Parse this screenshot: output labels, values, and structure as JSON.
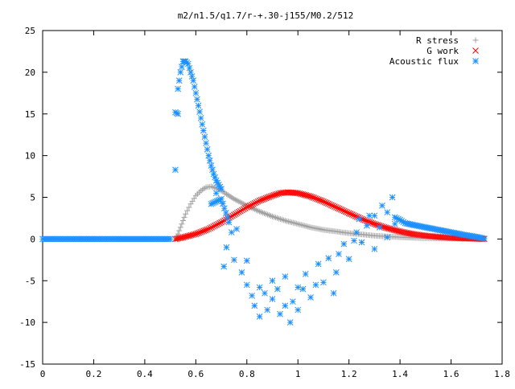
{
  "chart_data": {
    "type": "scatter",
    "title": "m2/n1.5/q1.7/r-+.30-j155/M0.2/512",
    "xlabel": "",
    "ylabel": "",
    "xlim": [
      0,
      1.8
    ],
    "ylim": [
      -15,
      25
    ],
    "xticks": [
      "0",
      "0.2",
      "0.4",
      "0.6",
      "0.8",
      "1",
      "1.2",
      "1.4",
      "1.6",
      "1.8"
    ],
    "yticks": [
      "-15",
      "-10",
      "-5",
      "0",
      "5",
      "10",
      "15",
      "20",
      "25"
    ],
    "grid": false,
    "legend_position": "top-right",
    "series": [
      {
        "name": "R stress",
        "marker": "plus",
        "color": "#a0a0a0",
        "points": [
          [
            0.52,
            0.0
          ],
          [
            0.53,
            0.6
          ],
          [
            0.54,
            1.4
          ],
          [
            0.55,
            2.2
          ],
          [
            0.56,
            3.0
          ],
          [
            0.58,
            4.2
          ],
          [
            0.6,
            5.2
          ],
          [
            0.62,
            5.8
          ],
          [
            0.64,
            6.2
          ],
          [
            0.66,
            6.3
          ],
          [
            0.68,
            6.1
          ],
          [
            0.7,
            5.8
          ],
          [
            0.72,
            5.4
          ],
          [
            0.75,
            4.8
          ],
          [
            0.8,
            4.0
          ],
          [
            0.85,
            3.3
          ],
          [
            0.9,
            2.7
          ],
          [
            0.95,
            2.2
          ],
          [
            1.0,
            1.8
          ],
          [
            1.05,
            1.4
          ],
          [
            1.1,
            1.1
          ],
          [
            1.15,
            0.9
          ],
          [
            1.2,
            0.7
          ],
          [
            1.25,
            0.55
          ],
          [
            1.3,
            0.4
          ],
          [
            1.35,
            0.3
          ],
          [
            1.4,
            0.22
          ],
          [
            1.45,
            0.15
          ],
          [
            1.5,
            0.1
          ],
          [
            1.55,
            0.07
          ],
          [
            1.6,
            0.04
          ],
          [
            1.65,
            0.02
          ],
          [
            1.7,
            0.01
          ],
          [
            1.73,
            0.0
          ]
        ]
      },
      {
        "name": "G work",
        "marker": "cross",
        "color": "#ff0000",
        "points": [
          [
            0.52,
            0.0
          ],
          [
            0.55,
            0.2
          ],
          [
            0.6,
            0.6
          ],
          [
            0.65,
            1.2
          ],
          [
            0.7,
            2.0
          ],
          [
            0.75,
            2.9
          ],
          [
            0.8,
            3.8
          ],
          [
            0.85,
            4.6
          ],
          [
            0.9,
            5.2
          ],
          [
            0.93,
            5.5
          ],
          [
            0.96,
            5.6
          ],
          [
            1.0,
            5.5
          ],
          [
            1.05,
            5.1
          ],
          [
            1.1,
            4.5
          ],
          [
            1.15,
            3.8
          ],
          [
            1.2,
            3.1
          ],
          [
            1.25,
            2.4
          ],
          [
            1.3,
            1.8
          ],
          [
            1.35,
            1.3
          ],
          [
            1.4,
            0.9
          ],
          [
            1.45,
            0.6
          ],
          [
            1.5,
            0.4
          ],
          [
            1.55,
            0.25
          ],
          [
            1.6,
            0.15
          ],
          [
            1.65,
            0.08
          ],
          [
            1.7,
            0.04
          ],
          [
            1.73,
            0.0
          ]
        ]
      },
      {
        "name": "Acoustic flux",
        "marker": "star",
        "color": "#1e90ff",
        "points": [
          [
            0.0,
            0.0
          ],
          [
            0.05,
            0.0
          ],
          [
            0.1,
            0.0
          ],
          [
            0.15,
            0.0
          ],
          [
            0.2,
            0.0
          ],
          [
            0.25,
            0.0
          ],
          [
            0.3,
            0.0
          ],
          [
            0.35,
            0.0
          ],
          [
            0.4,
            0.0
          ],
          [
            0.45,
            0.0
          ],
          [
            0.5,
            0.0
          ],
          [
            0.52,
            8.3
          ],
          [
            0.52,
            15.2
          ],
          [
            0.53,
            15.0
          ],
          [
            0.53,
            18.0
          ],
          [
            0.54,
            20.0
          ],
          [
            0.55,
            21.3
          ],
          [
            0.56,
            21.3
          ],
          [
            0.57,
            21.0
          ],
          [
            0.58,
            20.0
          ],
          [
            0.59,
            19.0
          ],
          [
            0.6,
            17.5
          ],
          [
            0.61,
            16.0
          ],
          [
            0.62,
            14.5
          ],
          [
            0.63,
            13.0
          ],
          [
            0.64,
            11.5
          ],
          [
            0.65,
            10.0
          ],
          [
            0.66,
            8.8
          ],
          [
            0.67,
            7.8
          ],
          [
            0.68,
            7.0
          ],
          [
            0.69,
            6.5
          ],
          [
            0.7,
            6.0
          ],
          [
            0.68,
            5.5
          ],
          [
            0.66,
            4.2
          ],
          [
            0.7,
            4.8
          ],
          [
            0.73,
            2.0
          ],
          [
            0.74,
            0.8
          ],
          [
            0.76,
            1.2
          ],
          [
            0.72,
            -1.0
          ],
          [
            0.71,
            -3.3
          ],
          [
            0.75,
            -2.5
          ],
          [
            0.78,
            -4.0
          ],
          [
            0.8,
            -2.6
          ],
          [
            0.8,
            -5.5
          ],
          [
            0.82,
            -6.8
          ],
          [
            0.83,
            -8.0
          ],
          [
            0.85,
            -5.8
          ],
          [
            0.85,
            -9.3
          ],
          [
            0.87,
            -6.5
          ],
          [
            0.88,
            -8.5
          ],
          [
            0.9,
            -7.2
          ],
          [
            0.9,
            -5.0
          ],
          [
            0.92,
            -6.0
          ],
          [
            0.93,
            -9.0
          ],
          [
            0.95,
            -8.0
          ],
          [
            0.95,
            -4.5
          ],
          [
            0.97,
            -10.0
          ],
          [
            0.98,
            -7.5
          ],
          [
            1.0,
            -5.8
          ],
          [
            1.0,
            -8.5
          ],
          [
            1.02,
            -6.0
          ],
          [
            1.03,
            -4.2
          ],
          [
            1.05,
            -7.0
          ],
          [
            1.07,
            -5.5
          ],
          [
            1.08,
            -3.0
          ],
          [
            1.1,
            -5.2
          ],
          [
            1.12,
            -2.3
          ],
          [
            1.14,
            -6.5
          ],
          [
            1.15,
            -4.0
          ],
          [
            1.16,
            -1.8
          ],
          [
            1.18,
            -0.6
          ],
          [
            1.2,
            -2.4
          ],
          [
            1.22,
            -0.2
          ],
          [
            1.23,
            0.8
          ],
          [
            1.24,
            2.4
          ],
          [
            1.25,
            -0.4
          ],
          [
            1.27,
            1.6
          ],
          [
            1.28,
            2.8
          ],
          [
            1.3,
            -1.2
          ],
          [
            1.3,
            2.8
          ],
          [
            1.32,
            1.4
          ],
          [
            1.33,
            4.0
          ],
          [
            1.35,
            0.2
          ],
          [
            1.35,
            3.2
          ],
          [
            1.37,
            5.0
          ],
          [
            1.38,
            1.8
          ],
          [
            1.38,
            2.6
          ],
          [
            1.4,
            2.3
          ],
          [
            1.42,
            1.9
          ],
          [
            1.45,
            1.7
          ],
          [
            1.5,
            1.4
          ],
          [
            1.55,
            1.1
          ],
          [
            1.6,
            0.8
          ],
          [
            1.65,
            0.5
          ],
          [
            1.7,
            0.25
          ],
          [
            1.73,
            0.05
          ]
        ]
      }
    ]
  }
}
